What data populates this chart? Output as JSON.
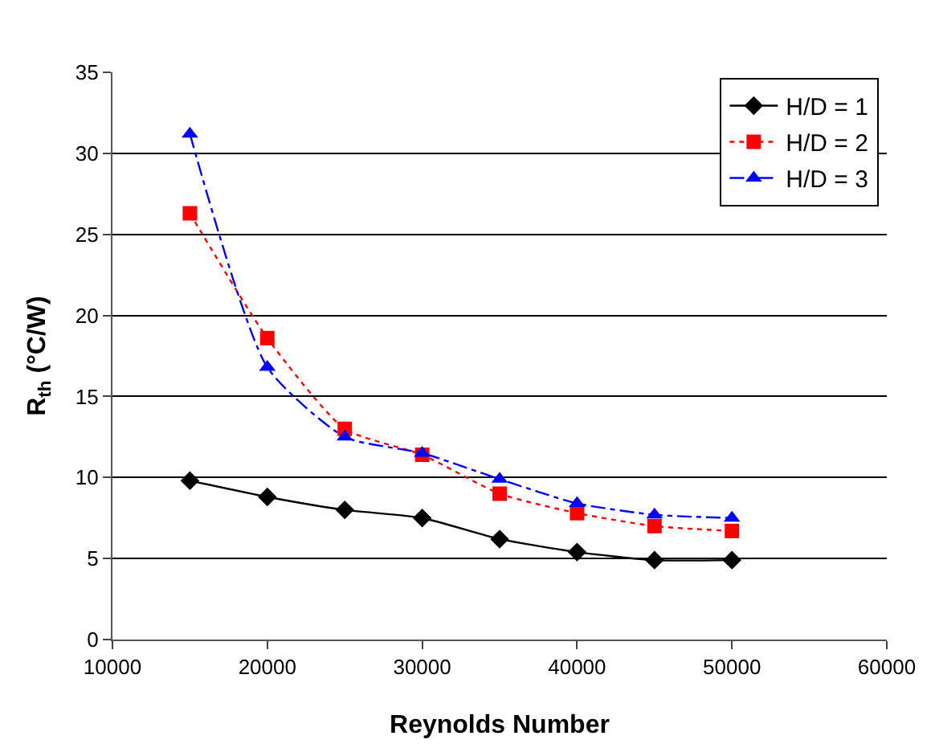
{
  "chart_data": {
    "type": "line",
    "xlabel": "Reynolds Number",
    "ylabel": "R$_{th}$ (°C/W)",
    "x": [
      15000,
      20000,
      25000,
      30000,
      35000,
      40000,
      45000,
      50000
    ],
    "series": [
      {
        "name": "H/D = 1",
        "color": "#000000",
        "marker": "diamond",
        "line_style": "solid",
        "values": [
          9.8,
          8.8,
          8.0,
          7.5,
          6.2,
          5.4,
          4.9,
          4.9
        ]
      },
      {
        "name": "H/D = 2",
        "color": "#ff0000",
        "marker": "square",
        "line_style": "dotted",
        "values": [
          26.3,
          18.6,
          13.0,
          11.4,
          9.0,
          7.8,
          7.0,
          6.7
        ]
      },
      {
        "name": "H/D = 3",
        "color": "#0000ff",
        "marker": "triangle",
        "line_style": "dashdot",
        "values": [
          31.2,
          16.8,
          12.5,
          11.5,
          9.9,
          8.4,
          7.7,
          7.5
        ]
      }
    ],
    "xlim": [
      10000,
      60000
    ],
    "xticks": [
      10000,
      20000,
      30000,
      40000,
      50000,
      60000
    ],
    "ylim": [
      0,
      35
    ],
    "yticks": [
      0,
      5,
      10,
      15,
      20,
      25,
      30,
      35
    ],
    "grid": "y",
    "legend": "top right"
  }
}
